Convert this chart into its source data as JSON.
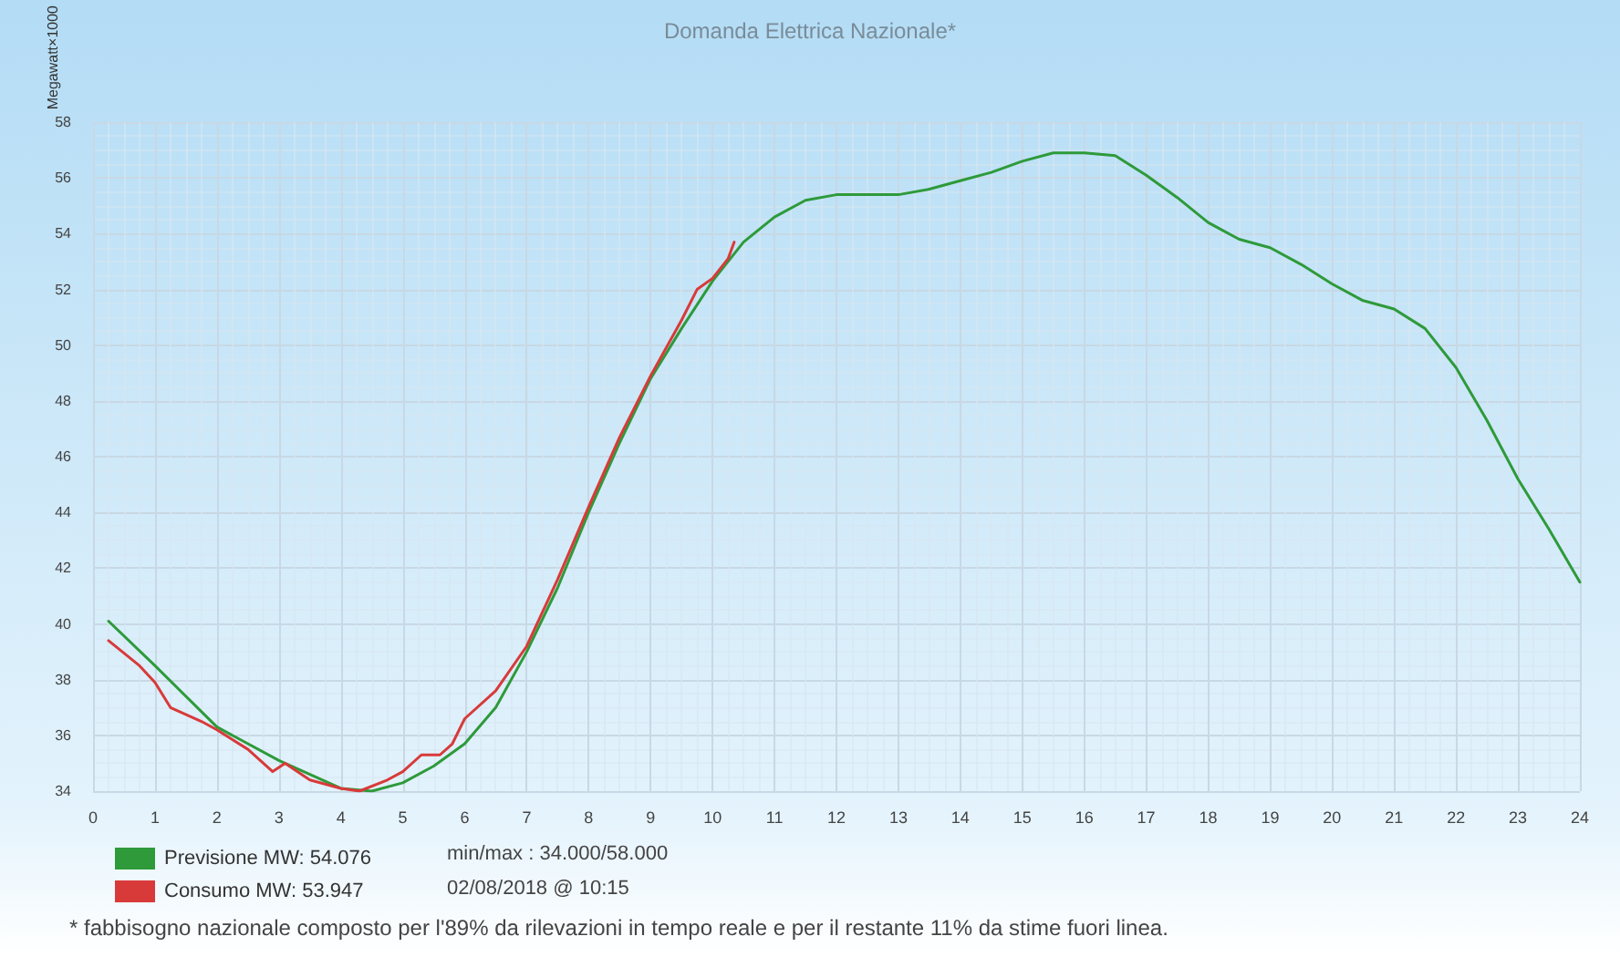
{
  "chart_data": {
    "type": "line",
    "title": "Domanda Elettrica Nazionale*",
    "ylabel": "Megawatt×1000",
    "xlim": [
      0,
      24
    ],
    "xticks": [
      0,
      1,
      2,
      3,
      4,
      5,
      6,
      7,
      8,
      9,
      10,
      11,
      12,
      13,
      14,
      15,
      16,
      17,
      18,
      19,
      20,
      21,
      22,
      23,
      24
    ],
    "ylim": [
      34,
      58
    ],
    "yticks": [
      34,
      36,
      38,
      40,
      42,
      44,
      46,
      48,
      50,
      52,
      54,
      56,
      58
    ],
    "grid": true,
    "legend": "bottom left",
    "marker": "none",
    "line_style": "solid",
    "series": [
      {
        "name": "Previsione MW: 54.076",
        "color": "#2e9a3a",
        "x": [
          0.25,
          1,
          2,
          3,
          4,
          4.5,
          5,
          5.5,
          6,
          6.5,
          7,
          7.5,
          8,
          8.5,
          9,
          9.5,
          10,
          10.5,
          11,
          11.5,
          12,
          12.5,
          13,
          13.5,
          14,
          14.5,
          15,
          15.5,
          16,
          16.5,
          17,
          17.5,
          18,
          18.5,
          19,
          19.5,
          20,
          20.5,
          21,
          21.5,
          22,
          22.5,
          23,
          23.5,
          24
        ],
        "values": [
          40.1,
          38.5,
          36.3,
          35.1,
          34.1,
          34.0,
          34.3,
          34.9,
          35.7,
          37.0,
          39.0,
          41.3,
          44.0,
          46.5,
          48.8,
          50.6,
          52.3,
          53.7,
          54.6,
          55.2,
          55.4,
          55.4,
          55.4,
          55.6,
          55.9,
          56.2,
          56.6,
          56.9,
          56.9,
          56.8,
          56.1,
          55.3,
          54.4,
          53.8,
          53.5,
          52.9,
          52.2,
          51.6,
          51.3,
          50.6,
          49.2,
          47.3,
          45.2,
          43.4,
          41.5
        ]
      },
      {
        "name": "Consumo MW: 53.947",
        "color": "#d83a3a",
        "x": [
          0.25,
          0.75,
          1,
          1.25,
          1.75,
          2,
          2.5,
          2.9,
          3.1,
          3.5,
          4,
          4.3,
          4.75,
          5,
          5.3,
          5.6,
          5.8,
          6,
          6.5,
          7,
          7.5,
          8,
          8.5,
          9,
          9.5,
          9.75,
          10,
          10.25,
          10.35
        ],
        "values": [
          39.4,
          38.5,
          37.9,
          37.0,
          36.5,
          36.2,
          35.5,
          34.7,
          35.0,
          34.4,
          34.1,
          34.0,
          34.4,
          34.7,
          35.3,
          35.3,
          35.7,
          36.6,
          37.6,
          39.2,
          41.6,
          44.2,
          46.7,
          48.9,
          50.9,
          52.0,
          52.4,
          53.1,
          53.7
        ]
      }
    ],
    "annotations": [
      "min/max : 34.000/58.000",
      "02/08/2018 @ 10:15",
      "* fabbisogno nazionale composto per l'89% da rilevazioni in tempo reale e per il restante 11% da stime fuori linea."
    ]
  }
}
